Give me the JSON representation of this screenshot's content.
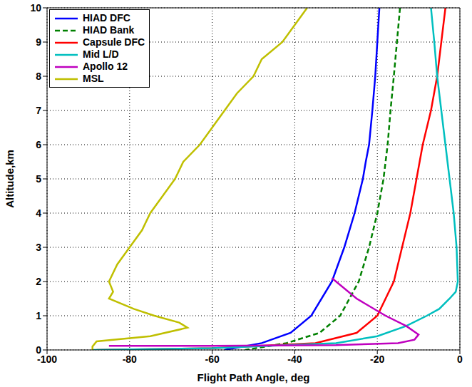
{
  "chart_data": {
    "type": "line",
    "xlabel": "Flight Path Angle, deg",
    "ylabel": "Altitude,km",
    "xlim": [
      -100,
      0
    ],
    "xticks": [
      -100,
      -80,
      -60,
      -40,
      -20,
      0
    ],
    "ylim": [
      0,
      10
    ],
    "yticks": [
      0,
      1,
      2,
      3,
      4,
      5,
      6,
      7,
      8,
      9,
      10
    ],
    "grid": true,
    "legend": "upper left",
    "series": [
      {
        "name": "HIAD DFC",
        "color": "#0000ff",
        "line_style": "solid",
        "x": [
          -19.5,
          -20.5,
          -21.2,
          -22,
          -22.8,
          -23.5,
          -25.5,
          -28,
          -31,
          -36,
          -41,
          -48,
          -57
        ],
        "values": [
          10,
          8,
          7,
          6,
          5.5,
          5,
          4,
          3,
          2,
          1,
          0.5,
          0.2,
          0
        ]
      },
      {
        "name": "HIAD Bank",
        "color": "#008000",
        "line_style": "dashed",
        "x": [
          -14.5,
          -16,
          -16.8,
          -17.5,
          -18,
          -18.5,
          -20,
          -22,
          -24.5,
          -29,
          -34,
          -42,
          -52
        ],
        "values": [
          10,
          8,
          7,
          6,
          5.5,
          5,
          4,
          3,
          2,
          1,
          0.5,
          0.2,
          0
        ]
      },
      {
        "name": "Capsule DFC",
        "color": "#ff0000",
        "line_style": "solid",
        "x": [
          -3.5,
          -4.5,
          -5.5,
          -7,
          -9,
          -10.5,
          -12,
          -14,
          -16,
          -20,
          -25,
          -35,
          -60,
          -88
        ],
        "values": [
          10,
          9,
          8,
          7,
          6,
          5,
          4,
          3,
          2,
          1,
          0.5,
          0.2,
          0.05,
          0
        ]
      },
      {
        "name": "Mid L/D",
        "color": "#00bfbf",
        "line_style": "solid",
        "x": [
          -7,
          -6.2,
          -5.5,
          -4.5,
          -3.5,
          -2.5,
          -1.5,
          -0.8,
          -0.5,
          -1,
          -2.5,
          -5,
          -8,
          -13,
          -20,
          -30,
          -60,
          -89
        ],
        "values": [
          10,
          9,
          8,
          7,
          6,
          5,
          4,
          3,
          2,
          1.7,
          1.5,
          1.2,
          1,
          0.7,
          0.4,
          0.2,
          0.05,
          0
        ]
      },
      {
        "name": "Apollo 12",
        "color": "#bf00bf",
        "line_style": "solid",
        "x": [
          -31,
          -25,
          -18,
          -13,
          -10,
          -11,
          -15,
          -30,
          -60,
          -85
        ],
        "values": [
          2.1,
          1.5,
          1,
          0.7,
          0.45,
          0.3,
          0.2,
          0.14,
          0.12,
          0.12
        ]
      },
      {
        "name": "MSL",
        "color": "#bfbf00",
        "line_style": "solid",
        "x": [
          -37,
          -40,
          -43,
          -48,
          -50,
          -54,
          -57,
          -60,
          -63,
          -67,
          -69,
          -72,
          -75,
          -77,
          -80,
          -83,
          -85,
          -84,
          -85,
          -79,
          -74,
          -68,
          -66,
          -75,
          -88,
          -89,
          -89
        ],
        "values": [
          10,
          9.5,
          9,
          8.5,
          8,
          7.5,
          7,
          6.5,
          6,
          5.5,
          5,
          4.5,
          4,
          3.5,
          3,
          2.5,
          2,
          1.7,
          1.5,
          1.2,
          1,
          0.8,
          0.65,
          0.4,
          0.25,
          0.1,
          0
        ]
      }
    ]
  }
}
